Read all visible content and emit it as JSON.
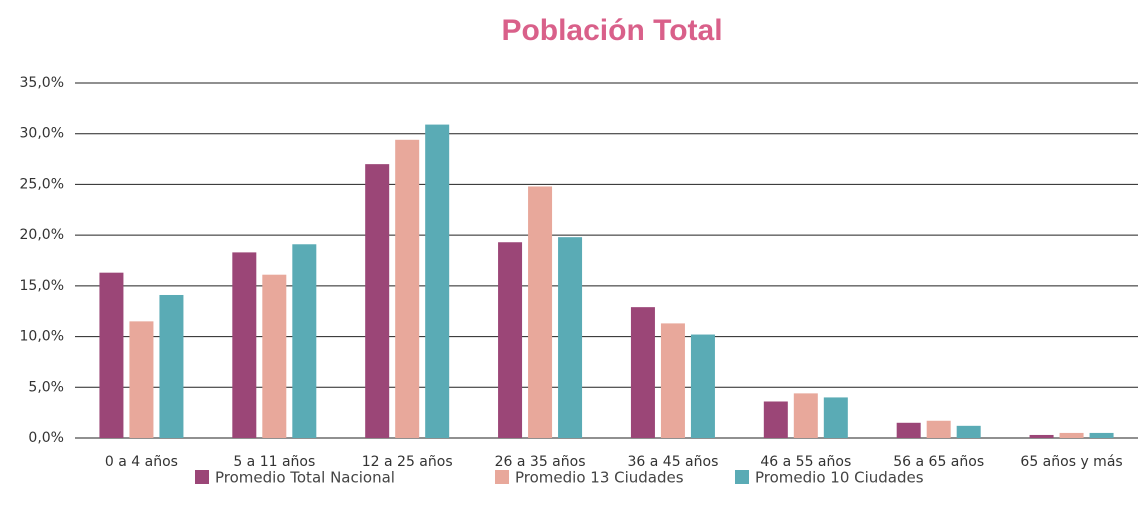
{
  "chart_data": {
    "type": "bar",
    "title": "Población Total",
    "categories": [
      "0 a 4 años",
      "5 a 11 años",
      "12 a 25 años",
      "26 a 35 años",
      "36 a 45 años",
      "46 a 55 años",
      "56 a 65 años",
      "65 años y más"
    ],
    "series": [
      {
        "name": "Promedio Total Nacional",
        "color": "#9b4677",
        "values": [
          16.3,
          18.3,
          27.0,
          19.3,
          12.9,
          3.6,
          1.5,
          0.3
        ]
      },
      {
        "name": "Promedio 13 Ciudades",
        "color": "#e8a89b",
        "values": [
          11.5,
          16.1,
          29.4,
          24.8,
          11.3,
          4.4,
          1.7,
          0.5
        ]
      },
      {
        "name": "Promedio 10 Ciudades",
        "color": "#5aabb5",
        "values": [
          14.1,
          19.1,
          30.9,
          19.8,
          10.2,
          4.0,
          1.2,
          0.5
        ]
      }
    ],
    "ylim": [
      0,
      35
    ],
    "yticks": [
      {
        "value": 0,
        "label": "0,0%"
      },
      {
        "value": 5,
        "label": "5,0%"
      },
      {
        "value": 10,
        "label": "10,0%"
      },
      {
        "value": 15,
        "label": "15,0%"
      },
      {
        "value": 20,
        "label": "20,0%"
      },
      {
        "value": 25,
        "label": "25,0%"
      },
      {
        "value": 30,
        "label": "30,0%"
      },
      {
        "value": 35,
        "label": "35,0%"
      }
    ],
    "grid": true
  }
}
